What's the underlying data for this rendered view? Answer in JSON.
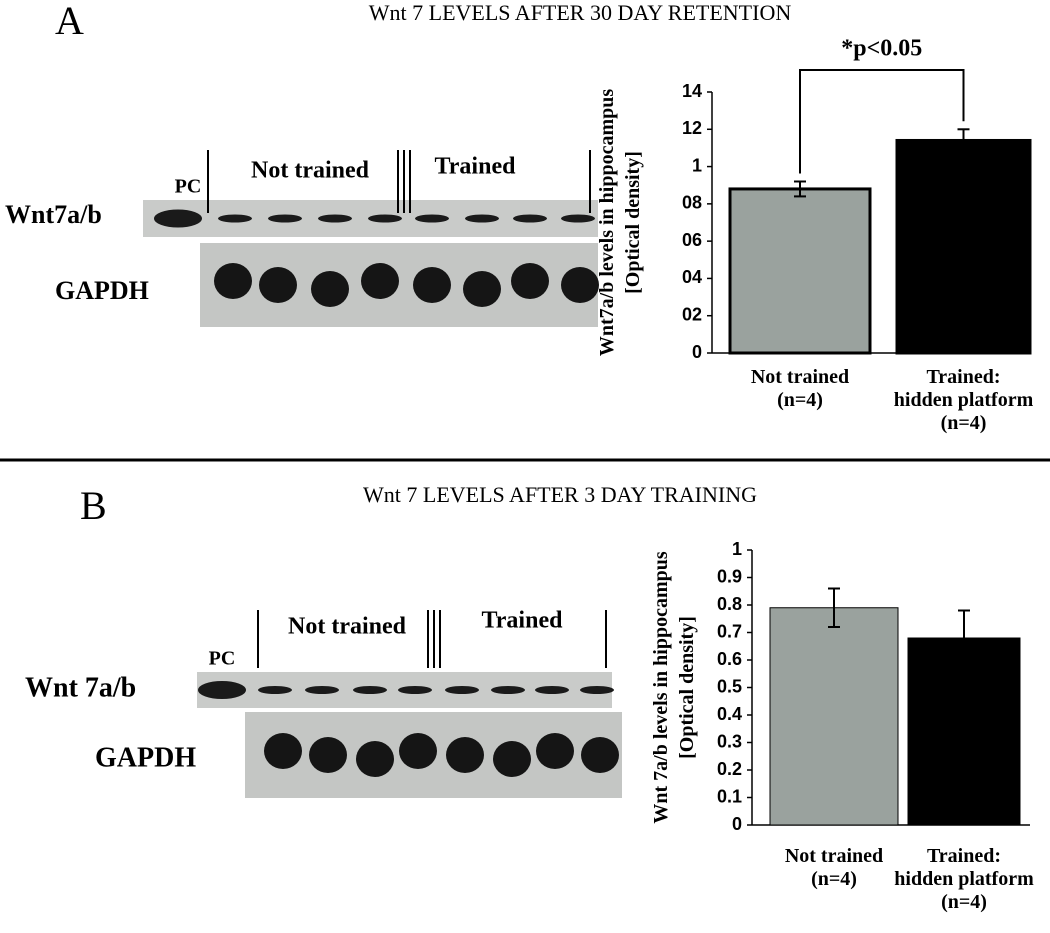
{
  "chart_data": [
    {
      "type": "bar",
      "panel": "A",
      "title": "Wnt 7 LEVELS AFTER 30 DAY RETENTION",
      "ylabel": "Wnt7a/b levels in hippocampus\n[Optical density]",
      "categories": [
        "Not trained\n(n=4)",
        "Trained:\nhidden platform\n(n=4)"
      ],
      "values": [
        0.88,
        1.14
      ],
      "errors": [
        0.04,
        0.06
      ],
      "colors": [
        "#9aa29e",
        "#000000"
      ],
      "ylim": [
        0,
        1.4
      ],
      "yticks": [
        0,
        {
          "value": 0.2,
          "label": "02"
        },
        {
          "value": 0.4,
          "label": "04"
        },
        {
          "value": 0.6,
          "label": "06"
        },
        {
          "value": 0.8,
          "label": "08"
        },
        1,
        {
          "value": 1.2,
          "label": "12"
        },
        {
          "value": 1.4,
          "label": "14"
        }
      ],
      "annotation": "*p<0.05",
      "blot": {
        "sample": "PC",
        "groups": [
          "Not trained",
          "Trained"
        ],
        "rows": [
          "Wnt7a/b",
          "GAPDH"
        ]
      }
    },
    {
      "type": "bar",
      "panel": "B",
      "title": "Wnt 7 LEVELS AFTER 3 DAY TRAINING",
      "ylabel": "Wnt 7a/b levels in hippocampus\n[Optical density]",
      "categories": [
        "Not trained\n(n=4)",
        "Trained:\nhidden platform\n(n=4)"
      ],
      "values": [
        0.79,
        0.68
      ],
      "errors": [
        0.07,
        0.1
      ],
      "colors": [
        "#9aa29e",
        "#000000"
      ],
      "ylim": [
        0,
        1
      ],
      "yticks": [
        0,
        0.1,
        0.2,
        0.3,
        0.4,
        0.5,
        0.6,
        0.7,
        0.8,
        0.9,
        1
      ],
      "blot": {
        "sample": "PC",
        "groups": [
          "Not trained",
          "Trained"
        ],
        "rows": [
          "Wnt 7a/b",
          "GAPDH"
        ]
      }
    }
  ]
}
